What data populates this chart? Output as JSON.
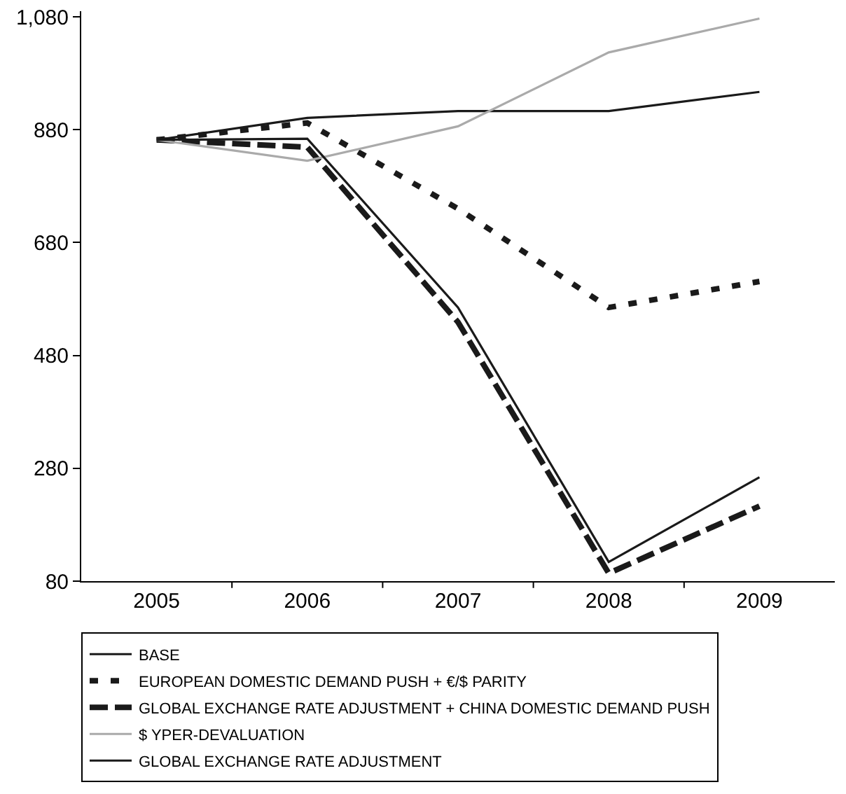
{
  "chart_data": {
    "type": "line",
    "categories": [
      "2005",
      "2006",
      "2007",
      "2008",
      "2009"
    ],
    "ylim": [
      80,
      1090
    ],
    "yticks": [
      80,
      280,
      480,
      680,
      880,
      {
        "value": 1080,
        "label": "1,080"
      }
    ],
    "grid": false,
    "legend": "bottom",
    "marker": "none",
    "series": [
      {
        "name": "BASE",
        "color": "#1a1a1a",
        "values": [
          862,
          901,
          913,
          913,
          947
        ],
        "line_style": "solid"
      },
      {
        "name": "EUROPEAN DOMESTIC DEMAND PUSH + €/$ PARITY",
        "color": "#1a1a1a",
        "values": [
          862,
          892,
          740,
          565,
          611
        ],
        "line_style": "dotted"
      },
      {
        "name": "GLOBAL EXCHANGE RATE ADJUSTMENT + CHINA DOMESTIC DEMAND PUSH",
        "color": "#1a1a1a",
        "values": [
          862,
          849,
          539,
          94,
          213
        ],
        "line_style": "dashed"
      },
      {
        "name": "$ YPER-DEVALUATION",
        "color": "#aaaaaa",
        "values": [
          862,
          825,
          886,
          1017,
          1077
        ],
        "line_style": "solid"
      },
      {
        "name": "GLOBAL EXCHANGE RATE ADJUSTMENT",
        "color": "#1a1a1a",
        "values": [
          862,
          864,
          565,
          114,
          264
        ],
        "line_style": "solid"
      }
    ]
  }
}
